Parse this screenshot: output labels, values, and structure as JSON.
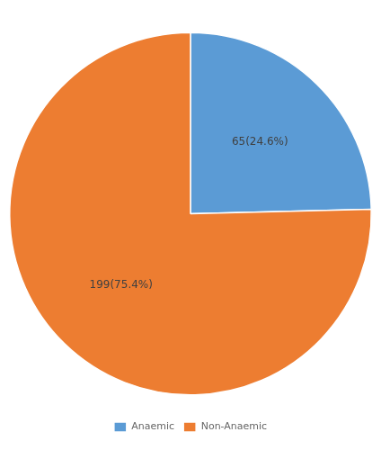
{
  "chart_data": {
    "type": "pie",
    "categories": [
      "Anaemic",
      "Non-Anaemic"
    ],
    "values": [
      24.6,
      75.4
    ],
    "colors": [
      "#5B9BD5",
      "#ED7D31"
    ],
    "value_labels": [
      "65(24.6%)",
      "199(75.4%)"
    ],
    "data_labels": true,
    "legend": "bottom"
  }
}
